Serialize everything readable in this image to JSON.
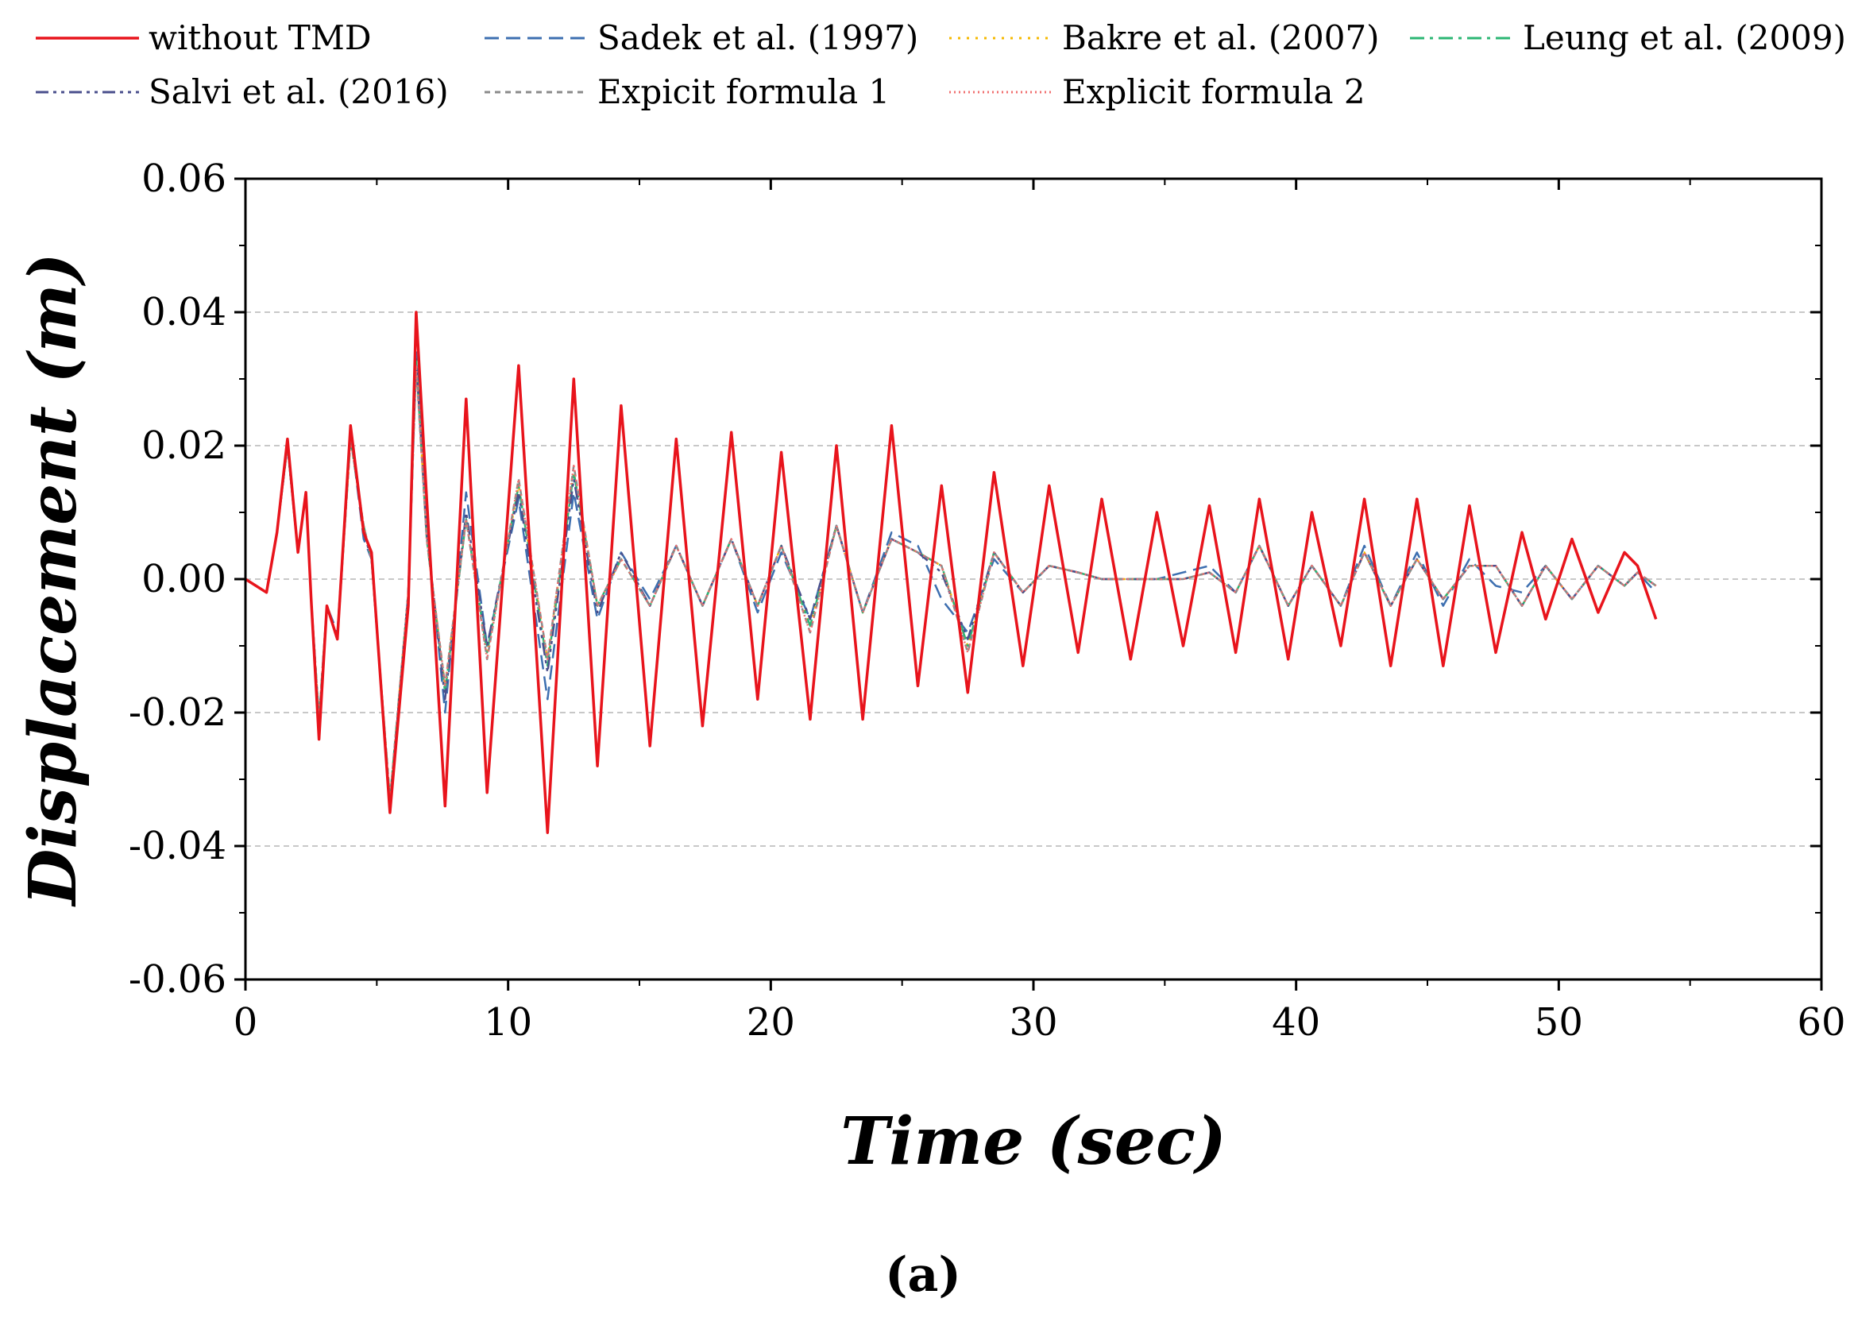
{
  "chart_data": {
    "type": "line",
    "title": "",
    "caption": "(a)",
    "xlabel": "Time (sec)",
    "ylabel": "Displacement (m)",
    "xlim": [
      0,
      60
    ],
    "ylim": [
      -0.06,
      0.06
    ],
    "xticks": [
      0,
      10,
      20,
      30,
      40,
      50,
      60
    ],
    "xtick_labels": [
      "0",
      "10",
      "20",
      "30",
      "40",
      "50",
      "60"
    ],
    "yticks": [
      -0.06,
      -0.04,
      -0.02,
      0.0,
      0.02,
      0.04,
      0.06
    ],
    "ytick_labels": [
      "-0.06",
      "-0.04",
      "-0.02",
      "0.00",
      "0.02",
      "0.04",
      "0.06"
    ],
    "grid": "horizontal dashed",
    "legend_position": "top",
    "series": [
      {
        "name": "without TMD",
        "color": "#e8141c",
        "dash": "solid",
        "x": [
          0,
          0.8,
          1.2,
          1.6,
          2.0,
          2.3,
          2.5,
          2.8,
          3.1,
          3.5,
          4.0,
          4.5,
          4.8,
          5.5,
          6.2,
          6.5,
          6.9,
          7.6,
          8.4,
          9.2,
          10.4,
          11.5,
          12.5,
          13.4,
          14.3,
          15.4,
          16.4,
          17.4,
          18.5,
          19.5,
          20.4,
          21.5,
          22.5,
          23.5,
          24.6,
          25.6,
          26.5,
          27.5,
          28.5,
          29.6,
          30.6,
          31.7,
          32.6,
          33.7,
          34.7,
          35.7,
          36.7,
          37.7,
          38.6,
          39.7,
          40.6,
          41.7,
          42.6,
          43.6,
          44.6,
          45.6,
          46.6,
          47.6,
          48.6,
          49.5,
          50.5,
          51.5,
          52.5,
          53.0,
          53.7
        ],
        "values": [
          0,
          -0.002,
          0.007,
          0.021,
          0.004,
          0.013,
          -0.003,
          -0.024,
          -0.004,
          -0.009,
          0.023,
          0.007,
          0.004,
          -0.035,
          -0.004,
          0.04,
          0.012,
          -0.034,
          0.027,
          -0.032,
          0.032,
          -0.038,
          0.03,
          -0.028,
          0.026,
          -0.025,
          0.021,
          -0.022,
          0.022,
          -0.018,
          0.019,
          -0.021,
          0.02,
          -0.021,
          0.023,
          -0.016,
          0.014,
          -0.017,
          0.016,
          -0.013,
          0.014,
          -0.011,
          0.012,
          -0.012,
          0.01,
          -0.01,
          0.011,
          -0.011,
          0.012,
          -0.012,
          0.01,
          -0.01,
          0.012,
          -0.013,
          0.012,
          -0.013,
          0.011,
          -0.011,
          0.007,
          -0.006,
          0.006,
          -0.005,
          0.004,
          0.002,
          -0.006
        ]
      },
      {
        "name": "Sadek et al. (1997)",
        "color": "#3d6fb0",
        "dash": "dashed",
        "x": [
          0,
          0.8,
          1.2,
          1.6,
          2.0,
          2.3,
          2.5,
          2.8,
          3.1,
          3.5,
          4.0,
          4.5,
          4.8,
          5.5,
          6.2,
          6.5,
          6.9,
          7.6,
          8.4,
          9.2,
          10.4,
          11.5,
          12.5,
          13.4,
          14.3,
          15.4,
          16.4,
          17.4,
          18.5,
          19.5,
          20.4,
          21.5,
          22.5,
          23.5,
          24.6,
          25.6,
          26.5,
          27.5,
          28.5,
          29.6,
          30.6,
          31.7,
          32.6,
          33.7,
          34.7,
          35.7,
          36.7,
          37.7,
          38.6,
          39.7,
          40.6,
          41.7,
          42.6,
          43.6,
          44.6,
          45.6,
          46.6,
          47.6,
          48.6,
          49.5,
          50.5,
          51.5,
          52.5,
          53.0,
          53.7
        ],
        "values": [
          0,
          -0.002,
          0.007,
          0.02,
          0.004,
          0.013,
          -0.003,
          -0.021,
          -0.004,
          -0.008,
          0.022,
          0.006,
          0.003,
          -0.034,
          -0.002,
          0.034,
          0.008,
          -0.02,
          0.013,
          -0.01,
          0.012,
          -0.018,
          0.013,
          -0.006,
          0.004,
          -0.003,
          0.005,
          -0.004,
          0.006,
          -0.005,
          0.004,
          -0.006,
          0.008,
          -0.005,
          0.007,
          0.005,
          -0.003,
          -0.008,
          0.003,
          -0.002,
          0.002,
          0.001,
          0.0,
          0.0,
          0.0,
          0.001,
          0.002,
          -0.002,
          0.005,
          -0.004,
          0.002,
          -0.004,
          0.005,
          -0.004,
          0.004,
          -0.004,
          0.003,
          -0.001,
          -0.002,
          0.002,
          -0.003,
          0.002,
          -0.001,
          0.001,
          -0.002
        ]
      },
      {
        "name": "Bakre et al. (2007)",
        "color": "#f5b800",
        "dash": "dotted",
        "x": [
          0,
          0.8,
          1.2,
          1.6,
          2.0,
          2.3,
          2.5,
          2.8,
          3.1,
          3.5,
          4.0,
          4.5,
          4.8,
          5.5,
          6.2,
          6.5,
          6.9,
          7.6,
          8.4,
          9.2,
          10.4,
          11.5,
          12.5,
          13.4,
          14.3,
          15.4,
          16.4,
          17.4,
          18.5,
          19.5,
          20.4,
          21.5,
          22.5,
          23.5,
          24.6,
          25.6,
          26.5,
          27.5,
          28.5,
          29.6,
          30.6,
          31.7,
          32.6,
          33.7,
          34.7,
          35.7,
          36.7,
          37.7,
          38.6,
          39.7,
          40.6,
          41.7,
          42.6,
          43.6,
          44.6,
          45.6,
          46.6,
          47.6,
          48.6,
          49.5,
          50.5,
          51.5,
          52.5,
          53.0,
          53.7
        ],
        "values": [
          0,
          -0.002,
          0.007,
          0.02,
          0.004,
          0.013,
          -0.003,
          -0.021,
          -0.004,
          -0.009,
          0.021,
          0.008,
          0.003,
          -0.033,
          -0.002,
          0.033,
          0.006,
          -0.016,
          0.009,
          -0.011,
          0.014,
          -0.012,
          0.016,
          -0.004,
          0.003,
          -0.004,
          0.005,
          -0.004,
          0.006,
          -0.004,
          0.005,
          -0.007,
          0.008,
          -0.005,
          0.006,
          0.004,
          0.002,
          -0.01,
          0.004,
          -0.002,
          0.002,
          0.001,
          0.0,
          0.0,
          0.0,
          0.0,
          0.001,
          -0.002,
          0.005,
          -0.004,
          0.002,
          -0.004,
          0.004,
          -0.004,
          0.003,
          -0.003,
          0.002,
          0.002,
          -0.004,
          0.002,
          -0.003,
          0.002,
          -0.001,
          0.001,
          -0.001
        ]
      },
      {
        "name": "Leung et al. (2009)",
        "color": "#2bb673",
        "dash": "dashdot",
        "x": [
          0,
          0.8,
          1.2,
          1.6,
          2.0,
          2.3,
          2.5,
          2.8,
          3.1,
          3.5,
          4.0,
          4.5,
          4.8,
          5.5,
          6.2,
          6.5,
          6.9,
          7.6,
          8.4,
          9.2,
          10.4,
          11.5,
          12.5,
          13.4,
          14.3,
          15.4,
          16.4,
          17.4,
          18.5,
          19.5,
          20.4,
          21.5,
          22.5,
          23.5,
          24.6,
          25.6,
          26.5,
          27.5,
          28.5,
          29.6,
          30.6,
          31.7,
          32.6,
          33.7,
          34.7,
          35.7,
          36.7,
          37.7,
          38.6,
          39.7,
          40.6,
          41.7,
          42.6,
          43.6,
          44.6,
          45.6,
          46.6,
          47.6,
          48.6,
          49.5,
          50.5,
          51.5,
          52.5,
          53.0,
          53.7
        ],
        "values": [
          0,
          -0.002,
          0.007,
          0.02,
          0.004,
          0.013,
          -0.003,
          -0.021,
          -0.004,
          -0.009,
          0.021,
          0.008,
          0.003,
          -0.033,
          -0.002,
          0.033,
          0.006,
          -0.017,
          0.009,
          -0.011,
          0.014,
          -0.013,
          0.016,
          -0.004,
          0.003,
          -0.004,
          0.005,
          -0.004,
          0.006,
          -0.004,
          0.005,
          -0.007,
          0.008,
          -0.005,
          0.006,
          0.004,
          0.002,
          -0.01,
          0.004,
          -0.002,
          0.002,
          0.001,
          0.0,
          0.0,
          0.0,
          0.0,
          0.001,
          -0.002,
          0.005,
          -0.004,
          0.002,
          -0.004,
          0.004,
          -0.004,
          0.003,
          -0.003,
          0.002,
          0.002,
          -0.004,
          0.002,
          -0.003,
          0.002,
          -0.001,
          0.001,
          -0.001
        ]
      },
      {
        "name": "Salvi et al. (2016)",
        "color": "#4a4f8c",
        "dash": "dashdotdot",
        "x": [
          0,
          0.8,
          1.2,
          1.6,
          2.0,
          2.3,
          2.5,
          2.8,
          3.1,
          3.5,
          4.0,
          4.5,
          4.8,
          5.5,
          6.2,
          6.5,
          6.9,
          7.6,
          8.4,
          9.2,
          10.4,
          11.5,
          12.5,
          13.4,
          14.3,
          15.4,
          16.4,
          17.4,
          18.5,
          19.5,
          20.4,
          21.5,
          22.5,
          23.5,
          24.6,
          25.6,
          26.5,
          27.5,
          28.5,
          29.6,
          30.6,
          31.7,
          32.6,
          33.7,
          34.7,
          35.7,
          36.7,
          37.7,
          38.6,
          39.7,
          40.6,
          41.7,
          42.6,
          43.6,
          44.6,
          45.6,
          46.6,
          47.6,
          48.6,
          49.5,
          50.5,
          51.5,
          52.5,
          53.0,
          53.7
        ],
        "values": [
          0,
          -0.002,
          0.007,
          0.02,
          0.004,
          0.013,
          -0.003,
          -0.022,
          -0.004,
          -0.009,
          0.022,
          0.007,
          0.003,
          -0.034,
          -0.002,
          0.033,
          0.007,
          -0.018,
          0.01,
          -0.01,
          0.013,
          -0.014,
          0.015,
          -0.005,
          0.004,
          -0.004,
          0.005,
          -0.004,
          0.006,
          -0.004,
          0.005,
          -0.006,
          0.008,
          -0.005,
          0.006,
          0.004,
          0.001,
          -0.009,
          0.004,
          -0.002,
          0.002,
          0.001,
          0.0,
          0.0,
          0.0,
          0.0,
          0.001,
          -0.002,
          0.005,
          -0.004,
          0.002,
          -0.004,
          0.004,
          -0.004,
          0.003,
          -0.003,
          0.002,
          0.002,
          -0.004,
          0.002,
          -0.003,
          0.002,
          -0.001,
          0.001,
          -0.001
        ]
      },
      {
        "name": "Expicit formula 1",
        "color": "#8a8a8a",
        "dash": "shortdash",
        "x": [
          0,
          0.8,
          1.2,
          1.6,
          2.0,
          2.3,
          2.5,
          2.8,
          3.1,
          3.5,
          4.0,
          4.5,
          4.8,
          5.5,
          6.2,
          6.5,
          6.9,
          7.6,
          8.4,
          9.2,
          10.4,
          11.5,
          12.5,
          13.4,
          14.3,
          15.4,
          16.4,
          17.4,
          18.5,
          19.5,
          20.4,
          21.5,
          22.5,
          23.5,
          24.6,
          25.6,
          26.5,
          27.5,
          28.5,
          29.6,
          30.6,
          31.7,
          32.6,
          33.7,
          34.7,
          35.7,
          36.7,
          37.7,
          38.6,
          39.7,
          40.6,
          41.7,
          42.6,
          43.6,
          44.6,
          45.6,
          46.6,
          47.6,
          48.6,
          49.5,
          50.5,
          51.5,
          52.5,
          53.0,
          53.7
        ],
        "values": [
          0,
          -0.002,
          0.007,
          0.02,
          0.004,
          0.013,
          -0.003,
          -0.021,
          -0.004,
          -0.009,
          0.021,
          0.008,
          0.003,
          -0.033,
          -0.002,
          0.032,
          0.006,
          -0.016,
          0.009,
          -0.012,
          0.015,
          -0.012,
          0.017,
          -0.004,
          0.003,
          -0.004,
          0.005,
          -0.004,
          0.006,
          -0.004,
          0.005,
          -0.008,
          0.008,
          -0.005,
          0.006,
          0.004,
          0.002,
          -0.011,
          0.004,
          -0.002,
          0.002,
          0.001,
          0.0,
          0.0,
          0.0,
          0.0,
          0.001,
          -0.002,
          0.005,
          -0.004,
          0.002,
          -0.004,
          0.004,
          -0.004,
          0.003,
          -0.003,
          0.002,
          0.002,
          -0.004,
          0.002,
          -0.003,
          0.002,
          -0.001,
          0.001,
          -0.001
        ]
      },
      {
        "name": "Explicit formula 2",
        "color": "#f07070",
        "dash": "finedot",
        "x": [
          0,
          0.8,
          1.2,
          1.6,
          2.0,
          2.3,
          2.5,
          2.8,
          3.1,
          3.5,
          4.0,
          4.5,
          4.8,
          5.5,
          6.2,
          6.5,
          6.9,
          7.6,
          8.4,
          9.2,
          10.4,
          11.5,
          12.5,
          13.4,
          14.3,
          15.4,
          16.4,
          17.4,
          18.5,
          19.5,
          20.4,
          21.5,
          22.5,
          23.5,
          24.6,
          25.6,
          26.5,
          27.5,
          28.5,
          29.6,
          30.6,
          31.7,
          32.6,
          33.7,
          34.7,
          35.7,
          36.7,
          37.7,
          38.6,
          39.7,
          40.6,
          41.7,
          42.6,
          43.6,
          44.6,
          45.6,
          46.6,
          47.6,
          48.6,
          49.5,
          50.5,
          51.5,
          52.5,
          53.0,
          53.7
        ],
        "values": [
          0,
          -0.002,
          0.007,
          0.02,
          0.004,
          0.013,
          -0.003,
          -0.021,
          -0.004,
          -0.009,
          0.021,
          0.008,
          0.003,
          -0.033,
          -0.002,
          0.032,
          0.006,
          -0.016,
          0.009,
          -0.012,
          0.015,
          -0.012,
          0.017,
          -0.004,
          0.003,
          -0.004,
          0.005,
          -0.004,
          0.006,
          -0.004,
          0.005,
          -0.008,
          0.008,
          -0.005,
          0.006,
          0.004,
          0.002,
          -0.011,
          0.004,
          -0.002,
          0.002,
          0.001,
          0.0,
          0.0,
          0.0,
          0.0,
          0.001,
          -0.002,
          0.005,
          -0.004,
          0.002,
          -0.004,
          0.004,
          -0.004,
          0.003,
          -0.003,
          0.002,
          0.002,
          -0.004,
          0.002,
          -0.003,
          0.002,
          -0.001,
          0.001,
          -0.001
        ]
      }
    ]
  }
}
